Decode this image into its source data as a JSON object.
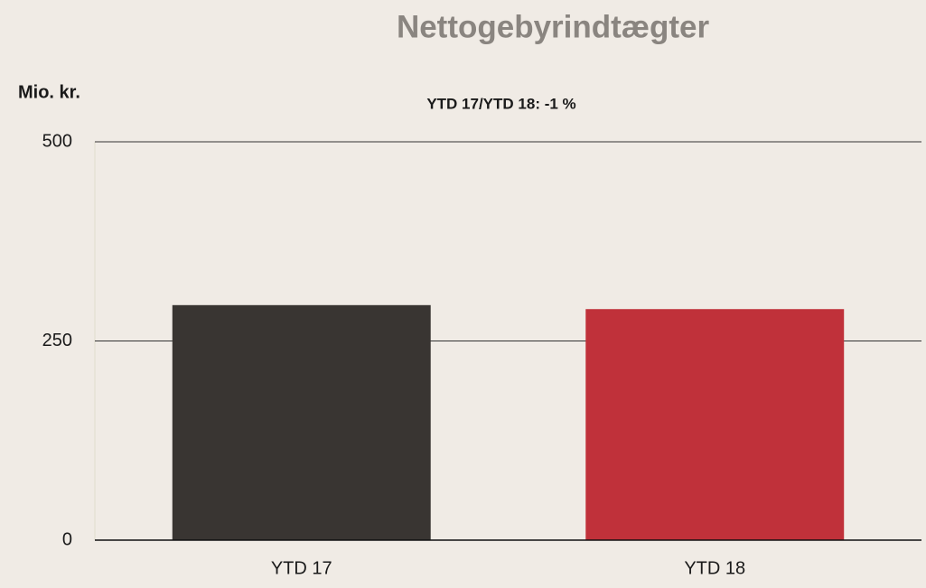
{
  "chart_data": {
    "type": "bar",
    "title": "Nettogebyrindtægter",
    "y_label": "Mio. kr.",
    "annotation": "YTD 17/YTD 18: -1 %",
    "categories": [
      "YTD 17",
      "YTD 18"
    ],
    "values": [
      295,
      290
    ],
    "colors": [
      "#393532",
      "#c0313a"
    ],
    "ylim": [
      0,
      500
    ],
    "yticks": [
      0,
      250,
      500
    ],
    "grid": true
  }
}
